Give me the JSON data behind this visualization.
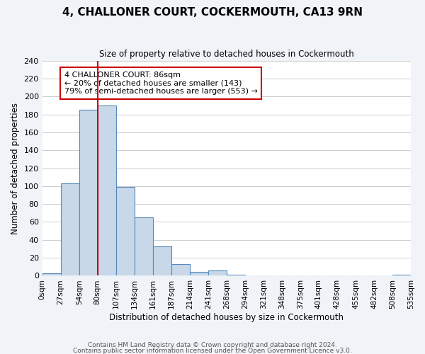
{
  "title": "4, CHALLONER COURT, COCKERMOUTH, CA13 9RN",
  "subtitle": "Size of property relative to detached houses in Cockermouth",
  "xlabel": "Distribution of detached houses by size in Cockermouth",
  "ylabel": "Number of detached properties",
  "footnote1": "Contains HM Land Registry data © Crown copyright and database right 2024.",
  "footnote2": "Contains public sector information licensed under the Open Government Licence v3.0.",
  "bin_labels": [
    "0sqm",
    "27sqm",
    "54sqm",
    "80sqm",
    "107sqm",
    "134sqm",
    "161sqm",
    "187sqm",
    "214sqm",
    "241sqm",
    "268sqm",
    "294sqm",
    "321sqm",
    "348sqm",
    "375sqm",
    "401sqm",
    "428sqm",
    "455sqm",
    "482sqm",
    "508sqm",
    "535sqm"
  ],
  "bar_heights": [
    3,
    103,
    185,
    190,
    99,
    65,
    33,
    13,
    4,
    6,
    1,
    0,
    0,
    0,
    0,
    0,
    0,
    0,
    0,
    1
  ],
  "bar_color": "#c8d8e8",
  "bar_edge_color": "#5588bb",
  "vline_x": 2,
  "vline_color": "#cc0000",
  "annotation_title": "4 CHALLONER COURT: 86sqm",
  "annotation_line1": "← 20% of detached houses are smaller (143)",
  "annotation_line2": "79% of semi-detached houses are larger (553) →",
  "annotation_box_color": "#ffffff",
  "annotation_box_edge": "#cc0000",
  "ylim": [
    0,
    240
  ],
  "yticks": [
    0,
    20,
    40,
    60,
    80,
    100,
    120,
    140,
    160,
    180,
    200,
    220,
    240
  ],
  "background_color": "#f0f4f8",
  "plot_background": "#ffffff",
  "grid_color": "#cccccc"
}
